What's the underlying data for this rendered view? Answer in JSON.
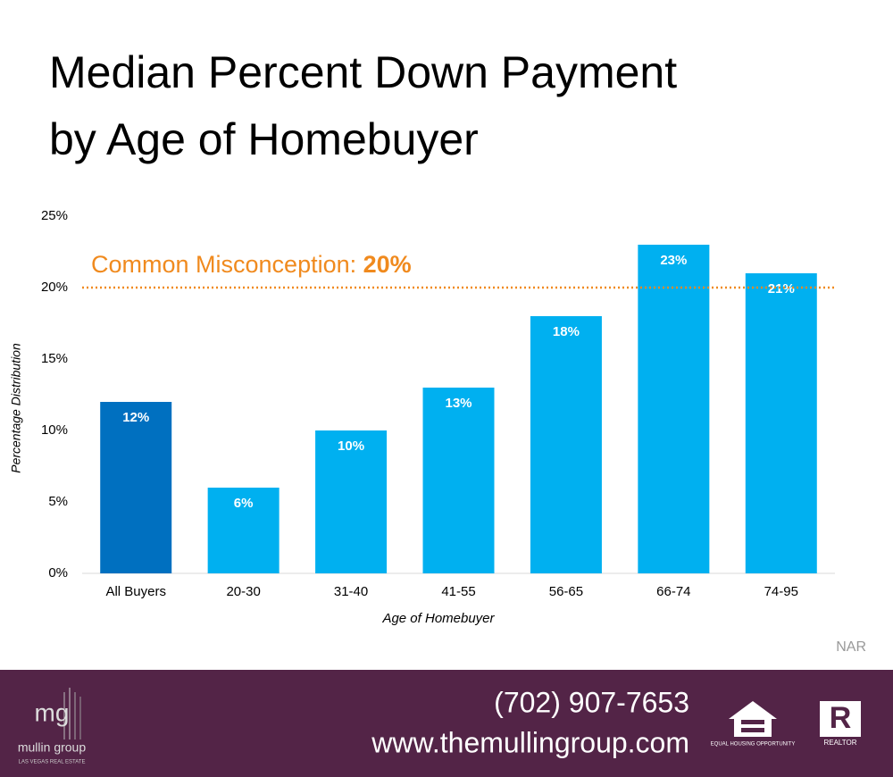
{
  "chart_data": {
    "type": "bar",
    "title": [
      "Median Percent Down Payment",
      "by Age of Homebuyer"
    ],
    "categories": [
      "All Buyers",
      "20-30",
      "31-40",
      "41-55",
      "56-65",
      "66-74",
      "74-95"
    ],
    "values": [
      12,
      6,
      10,
      13,
      18,
      23,
      21
    ],
    "value_labels": [
      "12%",
      "6%",
      "10%",
      "13%",
      "18%",
      "23%",
      "21%"
    ],
    "colors": [
      "#0070c0",
      "#00b0f0",
      "#00b0f0",
      "#00b0f0",
      "#00b0f0",
      "#00b0f0",
      "#00b0f0"
    ],
    "ylim": [
      0,
      25
    ],
    "yticks": [
      {
        "value": 0,
        "label": "0%"
      },
      {
        "value": 5,
        "label": "5%"
      },
      {
        "value": 10,
        "label": "10%"
      },
      {
        "value": 15,
        "label": "15%"
      },
      {
        "value": 20,
        "label": "20%"
      },
      {
        "value": 25,
        "label": "25%"
      }
    ],
    "ylabel": "Percentage Distribution",
    "xlabel": "Age of Homebuyer",
    "reference_line": {
      "value": 20,
      "label": "Common Misconception:",
      "value_label": "20%",
      "color": "#f08a1e"
    },
    "source": "NAR"
  },
  "footer": {
    "logo_mark": "mg",
    "logo_name": "mullin group",
    "logo_tagline": "LAS VEGAS REAL ESTATE",
    "phone": "(702) 907-7653",
    "website": "www.themullingroup.com",
    "equal_housing": "EQUAL HOUSING OPPORTUNITY",
    "realtor": "REALTOR"
  }
}
